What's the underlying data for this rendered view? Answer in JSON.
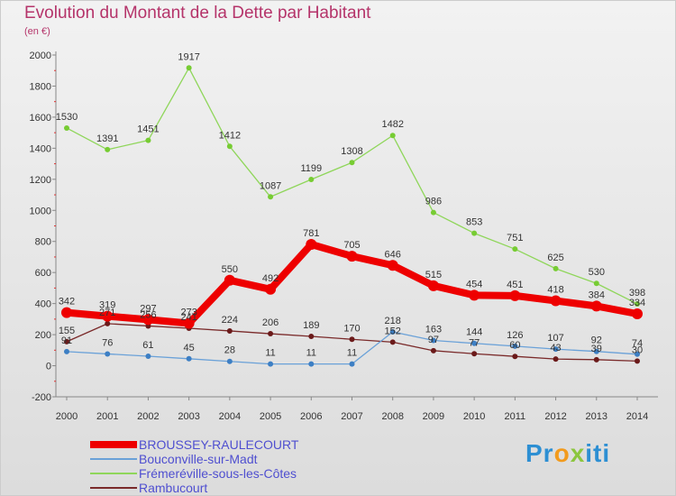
{
  "header": {
    "title": "Evolution du Montant de la Dette par Habitant",
    "unit": "(en €)"
  },
  "chart_data": {
    "type": "line",
    "title": "Evolution du Montant de la Dette par Habitant",
    "ylabel": "(en €)",
    "xlabel": "",
    "x": [
      2000,
      2001,
      2002,
      2003,
      2004,
      2005,
      2006,
      2007,
      2008,
      2009,
      2010,
      2011,
      2012,
      2013,
      2014
    ],
    "ylim": [
      -200,
      2000
    ],
    "yticks": [
      -200,
      0,
      200,
      400,
      600,
      800,
      1000,
      1200,
      1400,
      1600,
      1800,
      2000
    ],
    "grid": false,
    "legend_position": "bottom-left",
    "series": [
      {
        "name": "BROUSSEY-RAULECOURT",
        "color": "#ee0000",
        "values": [
          342,
          319,
          297,
          273,
          550,
          492,
          781,
          705,
          646,
          515,
          454,
          451,
          418,
          384,
          334
        ]
      },
      {
        "name": "Bouconville-sur-Madt",
        "color": "#6aa1d8",
        "values": [
          91,
          76,
          61,
          45,
          28,
          11,
          11,
          11,
          218,
          163,
          144,
          126,
          107,
          92,
          74
        ]
      },
      {
        "name": "Frémeréville-sous-les-Côtes",
        "color": "#8fd65a",
        "values": [
          1530,
          1391,
          1451,
          1917,
          1412,
          1087,
          1199,
          1308,
          1482,
          986,
          853,
          751,
          625,
          530,
          398
        ]
      },
      {
        "name": "Rambucourt",
        "color": "#7a2a2a",
        "values": [
          155,
          271,
          256,
          241,
          224,
          206,
          189,
          170,
          152,
          97,
          77,
          60,
          43,
          39,
          30
        ]
      }
    ]
  },
  "brand": {
    "p1": "Pr",
    "o": "o",
    "x": "x",
    "p2": "iti"
  }
}
